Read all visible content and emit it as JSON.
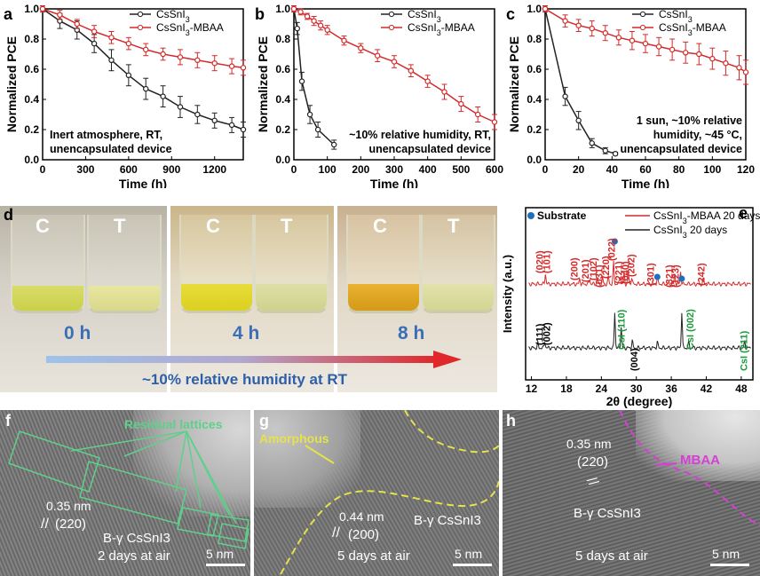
{
  "panels": {
    "a": "a",
    "b": "b",
    "c": "c",
    "d": "d",
    "e": "e",
    "f": "f",
    "g": "g",
    "h": "h"
  },
  "colors": {
    "csnl3": "#222222",
    "mbaa": "#d42a2a",
    "substrate_dot": "#1f6fbf",
    "peak_red": "#d42a2a",
    "peak_green": "#1a9a3a",
    "tem_green": "#5fd08a",
    "tem_yellow": "#e6e24a",
    "tem_magenta": "#d63fd6"
  },
  "chart_data": [
    {
      "type": "line",
      "panel": "a",
      "xlabel": "Time (h)",
      "ylabel": "Normalized PCE",
      "xlim": [
        0,
        1400
      ],
      "ylim": [
        0,
        1.0
      ],
      "xticks": [
        0,
        300,
        600,
        900,
        1200
      ],
      "yticks": [
        0.0,
        0.2,
        0.4,
        0.6,
        0.8,
        1.0
      ],
      "annotation": [
        "Inert atmosphere, RT,",
        "unencapsulated device"
      ],
      "series": [
        {
          "name": "CsSnI3",
          "x": [
            0,
            120,
            240,
            360,
            480,
            600,
            720,
            840,
            960,
            1080,
            1200,
            1320,
            1400
          ],
          "y": [
            1.0,
            0.92,
            0.86,
            0.77,
            0.66,
            0.56,
            0.47,
            0.42,
            0.35,
            0.3,
            0.26,
            0.23,
            0.2
          ],
          "err": [
            0.02,
            0.05,
            0.06,
            0.06,
            0.07,
            0.07,
            0.07,
            0.07,
            0.07,
            0.06,
            0.05,
            0.05,
            0.05
          ]
        },
        {
          "name": "CsSnI3-MBAA",
          "x": [
            0,
            120,
            240,
            360,
            480,
            600,
            720,
            840,
            960,
            1080,
            1200,
            1320,
            1400
          ],
          "y": [
            1.0,
            0.96,
            0.9,
            0.85,
            0.81,
            0.77,
            0.73,
            0.7,
            0.68,
            0.66,
            0.64,
            0.62,
            0.61
          ],
          "err": [
            0.02,
            0.03,
            0.03,
            0.04,
            0.04,
            0.04,
            0.04,
            0.04,
            0.05,
            0.05,
            0.05,
            0.05,
            0.05
          ]
        }
      ]
    },
    {
      "type": "line",
      "panel": "b",
      "xlabel": "Time (h)",
      "ylabel": "Normalized PCE",
      "xlim": [
        0,
        600
      ],
      "ylim": [
        0,
        1.0
      ],
      "xticks": [
        0,
        100,
        200,
        300,
        400,
        500,
        600
      ],
      "yticks": [
        0.0,
        0.2,
        0.4,
        0.6,
        0.8,
        1.0
      ],
      "annotation": [
        "~10% relative humidity, RT,",
        "unencapsulated device"
      ],
      "series": [
        {
          "name": "CsSnI3",
          "x": [
            0,
            10,
            24,
            48,
            72,
            120
          ],
          "y": [
            1.0,
            0.87,
            0.52,
            0.3,
            0.2,
            0.1
          ],
          "err": [
            0.02,
            0.04,
            0.06,
            0.06,
            0.05,
            0.03
          ]
        },
        {
          "name": "CsSnI3-MBAA",
          "x": [
            0,
            20,
            40,
            60,
            80,
            100,
            150,
            200,
            250,
            300,
            350,
            400,
            450,
            500,
            550,
            600
          ],
          "y": [
            1.0,
            0.98,
            0.95,
            0.92,
            0.89,
            0.86,
            0.79,
            0.74,
            0.69,
            0.65,
            0.59,
            0.52,
            0.45,
            0.37,
            0.3,
            0.25
          ],
          "err": [
            0.02,
            0.02,
            0.02,
            0.03,
            0.03,
            0.03,
            0.03,
            0.03,
            0.04,
            0.04,
            0.04,
            0.04,
            0.05,
            0.05,
            0.05,
            0.05
          ]
        }
      ]
    },
    {
      "type": "line",
      "panel": "c",
      "xlabel": "Time (h)",
      "ylabel": "Normalized PCE",
      "xlim": [
        0,
        120
      ],
      "ylim": [
        0,
        1.0
      ],
      "xticks": [
        0,
        20,
        40,
        60,
        80,
        100,
        120
      ],
      "yticks": [
        0.0,
        0.2,
        0.4,
        0.6,
        0.8,
        1.0
      ],
      "annotation": [
        "1 sun, ~10% relative",
        "humidity, ~45 °C,",
        "unencapsulated device"
      ],
      "series": [
        {
          "name": "CsSnI3",
          "x": [
            0,
            12,
            20,
            28,
            36,
            42
          ],
          "y": [
            1.0,
            0.42,
            0.26,
            0.11,
            0.06,
            0.04
          ],
          "err": [
            0.02,
            0.06,
            0.06,
            0.03,
            0.02,
            0.01
          ]
        },
        {
          "name": "CsSnI3-MBAA",
          "x": [
            0,
            12,
            20,
            28,
            36,
            44,
            52,
            60,
            68,
            76,
            84,
            92,
            100,
            108,
            116,
            120
          ],
          "y": [
            1.0,
            0.92,
            0.89,
            0.87,
            0.84,
            0.81,
            0.79,
            0.77,
            0.75,
            0.73,
            0.71,
            0.7,
            0.67,
            0.64,
            0.61,
            0.58
          ],
          "err": [
            0.02,
            0.04,
            0.04,
            0.05,
            0.05,
            0.05,
            0.06,
            0.06,
            0.06,
            0.07,
            0.07,
            0.07,
            0.07,
            0.08,
            0.08,
            0.08
          ]
        }
      ]
    },
    {
      "type": "line",
      "panel": "e",
      "xlabel": "2θ (degree)",
      "ylabel": "Intensity (a.u.)",
      "xlim": [
        11,
        50
      ],
      "xticks": [
        12,
        18,
        24,
        30,
        36,
        42,
        48
      ],
      "legend": [
        "CsSnI3-MBAA 20 days",
        "CsSnI3 20 days"
      ],
      "substrate_label": "Substrate",
      "series": [
        {
          "name": "CsSnI3-MBAA 20 days",
          "peaks": [
            [
              14.4,
              0.1
            ],
            [
              20.3,
              0.05
            ],
            [
              22.0,
              0.04
            ],
            [
              23.3,
              0.05
            ],
            [
              24.2,
              0.06
            ],
            [
              25.2,
              0.07
            ],
            [
              26.1,
              0.2
            ],
            [
              27.2,
              0.08
            ],
            [
              27.9,
              0.1
            ],
            [
              28.6,
              0.12
            ],
            [
              29.2,
              0.06
            ],
            [
              33.6,
              0.07
            ],
            [
              36.6,
              0.09
            ],
            [
              37.6,
              0.12
            ],
            [
              41.5,
              0.05
            ]
          ]
        },
        {
          "name": "CsSnI3 20 days",
          "peaks": [
            [
              13.1,
              0.04
            ],
            [
              14.3,
              0.06
            ],
            [
              26.3,
              0.34
            ],
            [
              27.4,
              0.2
            ],
            [
              29.3,
              0.07
            ],
            [
              33.6,
              0.06
            ],
            [
              37.8,
              0.34
            ],
            [
              39.0,
              0.05
            ],
            [
              48.6,
              0.06
            ]
          ]
        }
      ],
      "red_labels": [
        "(020)",
        "(101)",
        "(200)",
        "(201)",
        "(102)",
        "(031)",
        "(220)",
        "(022)",
        "(221)",
        "(040)",
        "(202)",
        "(301)",
        "(321)",
        "(123)",
        "(242)"
      ],
      "black_labels": [
        "(111)",
        "(002)",
        "(004)"
      ],
      "green_labels": [
        "CsI (110)",
        "CsI (002)",
        "CsI (211)"
      ]
    }
  ],
  "panel_d": {
    "vial_labels": [
      "C",
      "T"
    ],
    "times": [
      "0 h",
      "4 h",
      "8 h"
    ],
    "caption": "~10% relative humidity at RT"
  },
  "panel_f": {
    "annotation": "Residual lattices",
    "spacing": "0.35 nm",
    "plane": "(220)",
    "phase": "B-γ CsSnI3",
    "age": "2 days at air",
    "scale": "5 nm"
  },
  "panel_g": {
    "annotation": "Amorphous",
    "spacing": "0.44 nm",
    "plane": "(200)",
    "phase": "B-γ CsSnI3",
    "age": "5 days at air",
    "scale": "5 nm"
  },
  "panel_h": {
    "annotation": "MBAA",
    "spacing": "0.35 nm",
    "plane": "(220)",
    "phase": "B-γ CsSnI3",
    "age": "5 days at air",
    "scale": "5 nm"
  }
}
